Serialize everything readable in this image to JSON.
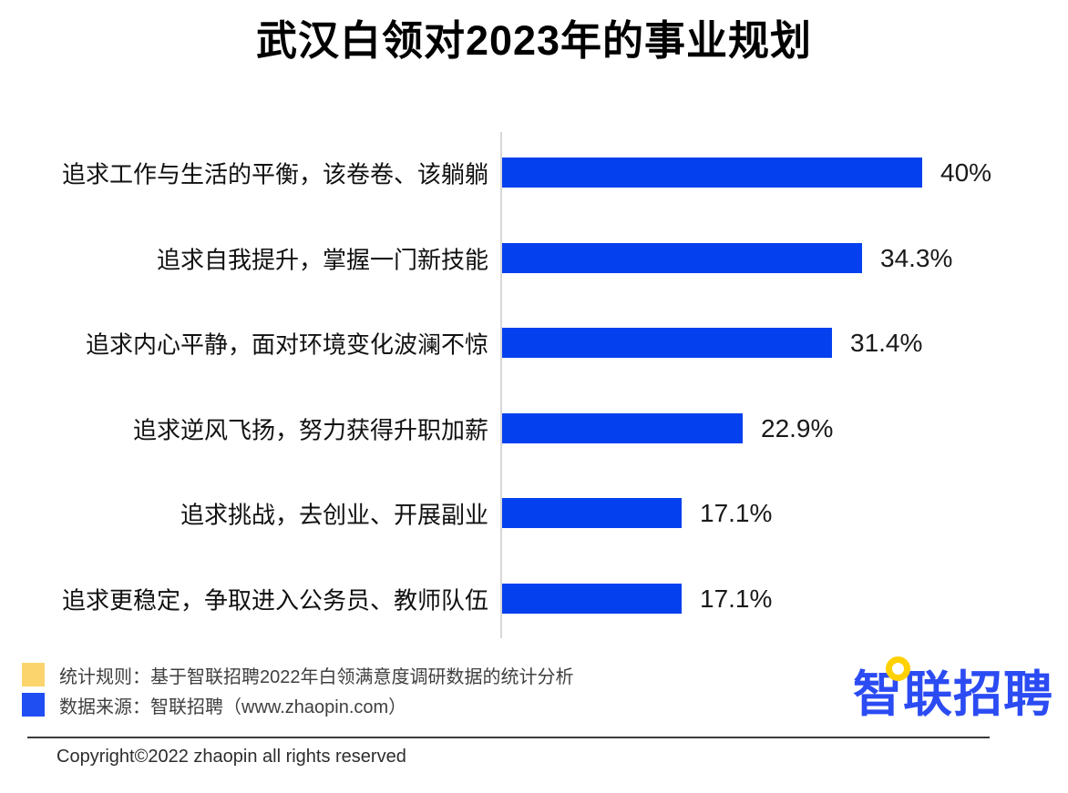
{
  "header": {
    "title": "武汉白领对2023年的事业规划"
  },
  "chart_data": {
    "type": "bar",
    "orientation": "horizontal",
    "title": "武汉白领对2023年的事业规划",
    "categories": [
      "追求工作与生活的平衡，该卷卷、该躺躺",
      "追求自我提升，掌握一门新技能",
      "追求内心平静，面对环境变化波澜不惊",
      "追求逆风飞扬，努力获得升职加薪",
      "追求挑战，去创业、开展副业",
      "追求更稳定，争取进入公务员、教师队伍"
    ],
    "values": [
      40,
      34.3,
      31.4,
      22.9,
      17.1,
      17.1
    ],
    "value_labels": [
      "40%",
      "34.3%",
      "31.4%",
      "22.9%",
      "17.1%",
      "17.1%"
    ],
    "xlim": [
      0,
      40
    ],
    "grid": false,
    "legend_position": "none",
    "bar_color": "#0540ee",
    "axis_color": "#d7d7d7"
  },
  "legend": {
    "items": [
      {
        "swatch_color": "#fbd46d",
        "text": "统计规则：基于智联招聘2022年白领满意度调研数据的统计分析"
      },
      {
        "swatch_color": "#1f4ef2",
        "text": "数据来源：智联招聘（www.zhaopin.com）"
      }
    ]
  },
  "footer": {
    "logo_text": "智联招聘",
    "copyright": "Copyright©2022 zhaopin all rights reserved"
  },
  "colors": {
    "bar_blue": "#0540ee",
    "legend_blue": "#1f4ef2",
    "legend_yellow": "#fbd46d",
    "logo_blue": "#2b4bf3",
    "logo_yellow": "#ffd100",
    "axis_gray": "#d7d7d7",
    "title_black": "#000000"
  }
}
